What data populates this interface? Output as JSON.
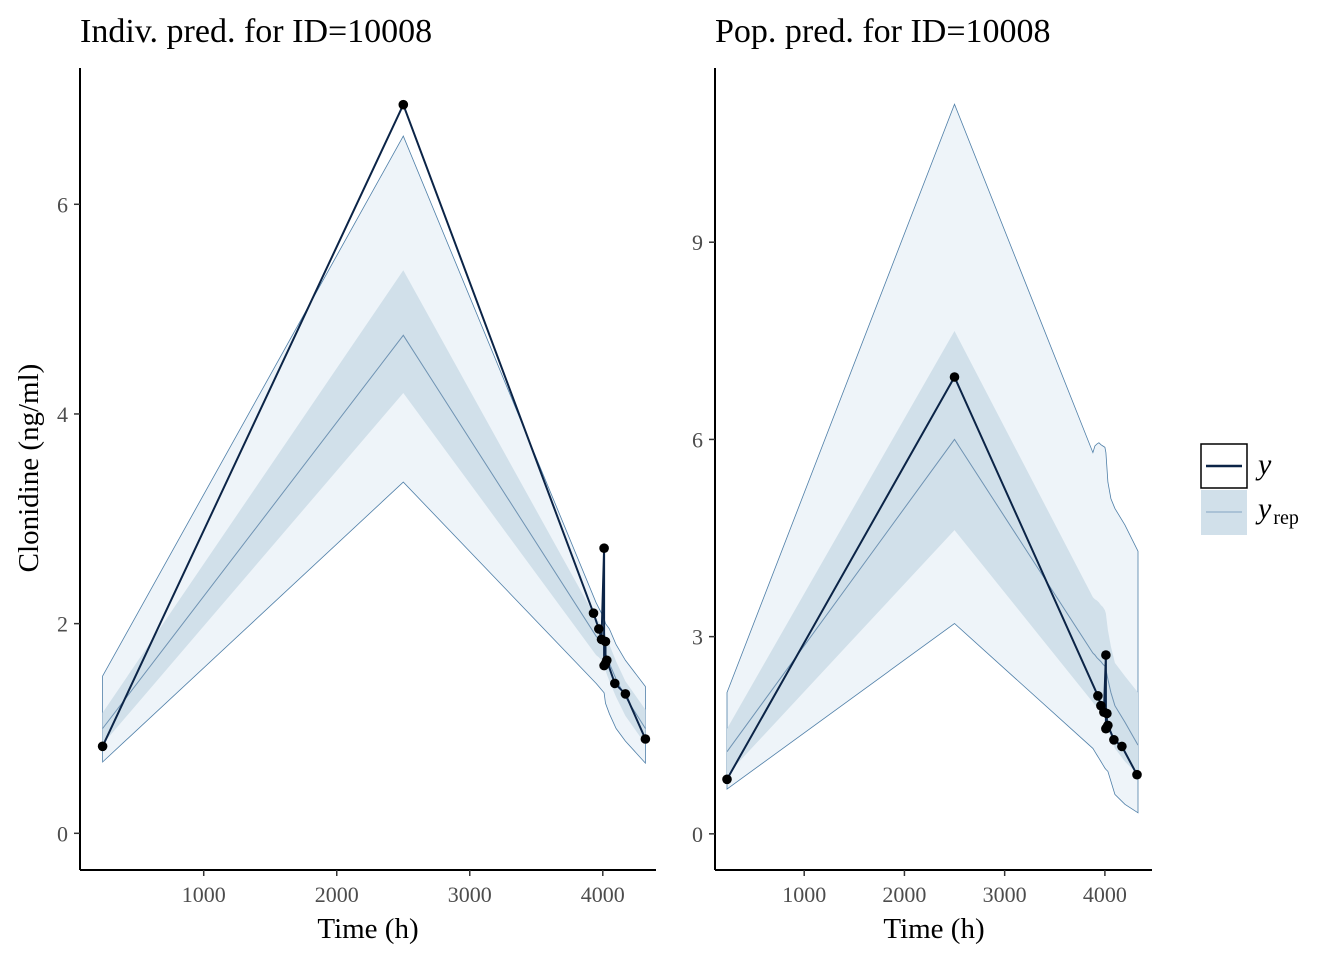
{
  "chart_data": [
    {
      "type": "area",
      "title": "Indiv. pred. for ID=10008",
      "xlabel": "Time (h)",
      "ylabel": "Clonidine (ng/ml)",
      "xlim": [
        70,
        4400
      ],
      "ylim": [
        -0.35,
        7.3
      ],
      "xticks": [
        1000,
        2000,
        3000,
        4000
      ],
      "yticks": [
        0,
        2,
        4,
        6
      ],
      "band_x": [
        240,
        2500,
        3950,
        3970,
        3990,
        4010,
        4020,
        4050,
        4100,
        4170,
        4320
      ],
      "outer_upper": [
        1.5,
        6.65,
        2.2,
        2.15,
        2.1,
        2.05,
        2.0,
        1.95,
        1.8,
        1.65,
        1.4
      ],
      "outer_lower": [
        0.68,
        3.35,
        1.43,
        1.4,
        1.37,
        1.34,
        1.24,
        1.14,
        1.0,
        0.88,
        0.67
      ],
      "inner_upper": [
        1.15,
        5.37,
        2.05,
        2.02,
        1.98,
        1.95,
        1.9,
        1.8,
        1.64,
        1.45,
        1.18
      ],
      "inner_lower": [
        0.85,
        4.2,
        1.7,
        1.68,
        1.65,
        1.63,
        1.55,
        1.45,
        1.3,
        1.12,
        0.85
      ],
      "median": [
        1.0,
        4.75,
        1.88,
        1.85,
        1.82,
        1.79,
        1.72,
        1.62,
        1.47,
        1.3,
        1.0
      ],
      "observed_x": [
        240,
        2500,
        3930,
        3970,
        3990,
        4010,
        4010,
        4020,
        4020,
        4030,
        4090,
        4170,
        4320
      ],
      "observed_y": [
        0.83,
        6.95,
        2.1,
        1.95,
        1.85,
        2.72,
        1.6,
        1.83,
        1.62,
        1.65,
        1.43,
        1.33,
        0.9
      ]
    },
    {
      "type": "area",
      "title": "Pop. pred. for ID=10008",
      "xlabel": "Time (h)",
      "ylabel": "",
      "xlim": [
        110,
        4470
      ],
      "ylim": [
        -0.55,
        11.65
      ],
      "xticks": [
        1000,
        2000,
        3000,
        4000
      ],
      "yticks": [
        0,
        3,
        6,
        9
      ],
      "band_x": [
        230,
        2500,
        3880,
        3900,
        3920,
        3940,
        3960,
        3980,
        4000,
        4010,
        4030,
        4060,
        4100,
        4200,
        4330
      ],
      "outer_upper": [
        2.15,
        11.1,
        5.8,
        5.9,
        5.93,
        5.95,
        5.92,
        5.9,
        5.88,
        5.8,
        5.35,
        5.1,
        4.95,
        4.7,
        4.3
      ],
      "outer_lower": [
        0.68,
        3.2,
        1.3,
        1.25,
        1.2,
        1.15,
        1.1,
        1.05,
        1.0,
        0.98,
        0.95,
        0.8,
        0.6,
        0.45,
        0.32
      ],
      "inner_upper": [
        1.6,
        7.65,
        3.6,
        3.57,
        3.55,
        3.52,
        3.48,
        3.45,
        3.4,
        3.35,
        3.1,
        2.85,
        2.6,
        2.4,
        2.15
      ],
      "inner_lower": [
        0.9,
        4.62,
        2.0,
        1.96,
        1.93,
        1.9,
        1.87,
        1.83,
        1.8,
        1.75,
        1.6,
        1.45,
        1.3,
        1.1,
        0.9
      ],
      "median": [
        1.25,
        6.0,
        2.75,
        2.72,
        2.68,
        2.65,
        2.62,
        2.58,
        2.55,
        2.5,
        2.35,
        2.15,
        1.95,
        1.7,
        1.35
      ],
      "observed_x": [
        230,
        2500,
        3930,
        3960,
        3990,
        4010,
        4010,
        4020,
        4020,
        4030,
        4090,
        4170,
        4320
      ],
      "observed_y": [
        0.83,
        6.95,
        2.1,
        1.95,
        1.85,
        2.72,
        1.6,
        1.83,
        1.62,
        1.65,
        1.43,
        1.33,
        0.9
      ]
    }
  ],
  "legend": {
    "items": [
      {
        "label": "y",
        "subscript": ""
      },
      {
        "label": "y",
        "subscript": "rep"
      }
    ]
  },
  "colors": {
    "outer_band": "#eef4f9",
    "inner_band": "#d1e0ea",
    "band_edge": "#4f7fa8",
    "median_line": "#6f93b3",
    "observed_line": "#0b2447",
    "observed_point": "#000000",
    "axis": "#000000"
  }
}
